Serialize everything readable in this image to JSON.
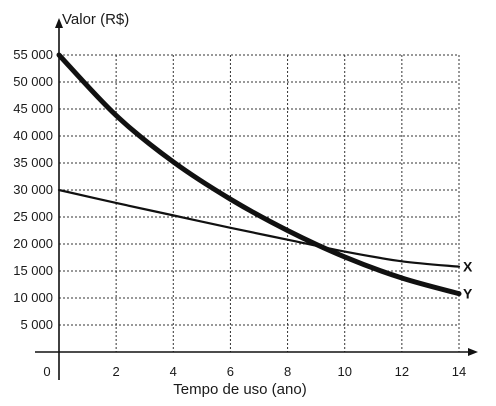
{
  "chart_data": {
    "type": "line",
    "ylabel": "Valor (R$)",
    "xlabel": "Tempo de uso (ano)",
    "xlim": [
      0,
      14
    ],
    "ylim": [
      0,
      55000
    ],
    "x_ticks": [
      2,
      4,
      6,
      8,
      10,
      12,
      14
    ],
    "x_tick_labels": [
      "2",
      "4",
      "6",
      "8",
      "10",
      "12",
      "14"
    ],
    "y_ticks": [
      5000,
      10000,
      15000,
      20000,
      25000,
      30000,
      35000,
      40000,
      45000,
      50000,
      55000
    ],
    "y_tick_labels": [
      "5 000",
      "10 000",
      "15 000",
      "20 000",
      "25 000",
      "30 000",
      "35 000",
      "40 000",
      "45 000",
      "50 000",
      "55 000"
    ],
    "origin_label": "0",
    "grid": true,
    "series": [
      {
        "name": "X",
        "x": [
          0,
          2,
          4,
          6,
          8,
          10,
          12,
          14
        ],
        "y": [
          30000,
          27600,
          25300,
          23000,
          20800,
          18600,
          16800,
          15800
        ],
        "line_weight": "thin",
        "color": "#111111"
      },
      {
        "name": "Y",
        "x": [
          0,
          2,
          4,
          6,
          8,
          10,
          12,
          14
        ],
        "y": [
          55000,
          43800,
          35200,
          28300,
          22500,
          17600,
          13700,
          10800
        ],
        "line_weight": "thick",
        "color": "#111111"
      }
    ]
  }
}
